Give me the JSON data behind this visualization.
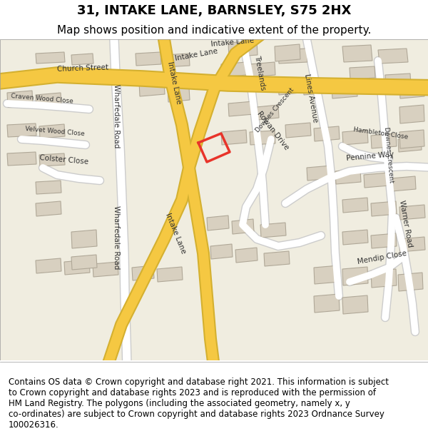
{
  "title": "31, INTAKE LANE, BARNSLEY, S75 2HX",
  "subtitle": "Map shows position and indicative extent of the property.",
  "footer": "Contains OS data © Crown copyright and database right 2021. This information is subject\nto Crown copyright and database rights 2023 and is reproduced with the permission of\nHM Land Registry. The polygons (including the associated geometry, namely x, y\nco-ordinates) are subject to Crown copyright and database rights 2023 Ordnance Survey\n100026316.",
  "bg_color": "#f0ede0",
  "map_bg": "#f0ede0",
  "road_color": "#f5c842",
  "road_minor_color": "#ffffff",
  "building_color": "#d8d0c0",
  "building_edge": "#b0a898",
  "plot_color": "#e8342a",
  "header_bg": "#ffffff",
  "footer_bg": "#ffffff",
  "title_fontsize": 13,
  "subtitle_fontsize": 11,
  "footer_fontsize": 8.5,
  "label_fontsize": 7.5,
  "label_small_fontsize": 6.5,
  "label_color": "#333333"
}
